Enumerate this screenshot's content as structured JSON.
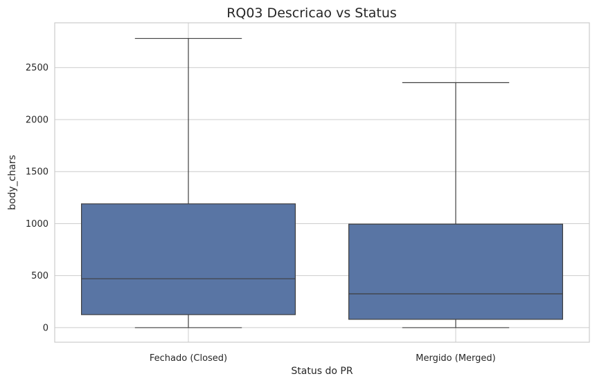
{
  "chart_data": {
    "type": "box",
    "title": "RQ03 Descricao vs Status",
    "xlabel": "Status do PR",
    "ylabel": "body_chars",
    "categories": [
      "Fechado (Closed)",
      "Mergido (Merged)"
    ],
    "boxes": [
      {
        "name": "Fechado (Closed)",
        "whisker_low": 0,
        "q1": 125,
        "median": 470,
        "q3": 1190,
        "whisker_high": 2780
      },
      {
        "name": "Mergido (Merged)",
        "whisker_low": 0,
        "q1": 80,
        "median": 325,
        "q3": 995,
        "whisker_high": 2355
      }
    ],
    "yticks": [
      0,
      500,
      1000,
      1500,
      2000,
      2500
    ],
    "ylim": [
      -140,
      2930
    ],
    "grid": true,
    "legend": "none",
    "box_color": "#5975a4",
    "line_color": "#3f3f3f",
    "grid_color": "#cccccc",
    "spine_color": "#cccccc"
  }
}
